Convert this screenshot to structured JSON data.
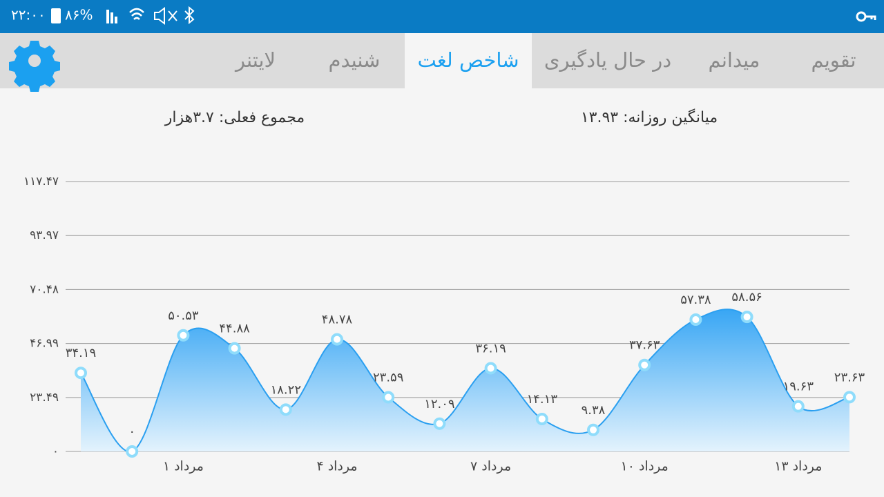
{
  "status_bar": {
    "time": "۲۲:۰۰",
    "battery": "۸۶%"
  },
  "tabs": {
    "labels": [
      "تقویم",
      "میدانم",
      "در حال یادگیری",
      "شاخص لغت",
      "شنیدم",
      "لایتنر"
    ],
    "active": 3
  },
  "summary": {
    "daily_average": "میانگین روزانه: ۱۳.۹۳",
    "current_total": "مجموع فعلی: ۳.۷هزار"
  },
  "chart_data": {
    "type": "area",
    "categories": [
      null,
      null,
      "۱ مرداد",
      null,
      null,
      "۴ مرداد",
      null,
      null,
      "۷ مرداد",
      null,
      null,
      "۱۰ مرداد",
      null,
      null,
      "۱۳ مرداد",
      null
    ],
    "values": [
      34.19,
      0,
      50.53,
      44.88,
      18.22,
      48.78,
      23.59,
      12.09,
      36.19,
      14.13,
      9.38,
      37.63,
      57.38,
      58.56,
      19.63,
      23.63
    ],
    "value_labels": [
      "۳۴.۱۹",
      "۰",
      "۵۰.۵۳",
      "۴۴.۸۸",
      "۱۸.۲۲",
      "۴۸.۷۸",
      "۲۳.۵۹",
      "۱۲.۰۹",
      "۳۶.۱۹",
      "۱۴.۱۳",
      "۹.۳۸",
      "۳۷.۶۳",
      "۵۷.۳۸",
      "۵۸.۵۶",
      "۱۹.۶۳",
      "۲۳.۶۳"
    ],
    "color": "#2a9ff0",
    "ylim": [
      0,
      117.47
    ],
    "yticks": [
      {
        "value": 0,
        "label": "۰"
      },
      {
        "value": 23.49,
        "label": "۲۳.۴۹"
      },
      {
        "value": 46.99,
        "label": "۴۶.۹۹"
      },
      {
        "value": 70.48,
        "label": "۷۰.۴۸"
      },
      {
        "value": 93.97,
        "label": "۹۳.۹۷"
      },
      {
        "value": 117.47,
        "label": "۱۱۷.۴۷"
      }
    ],
    "grid": true
  }
}
